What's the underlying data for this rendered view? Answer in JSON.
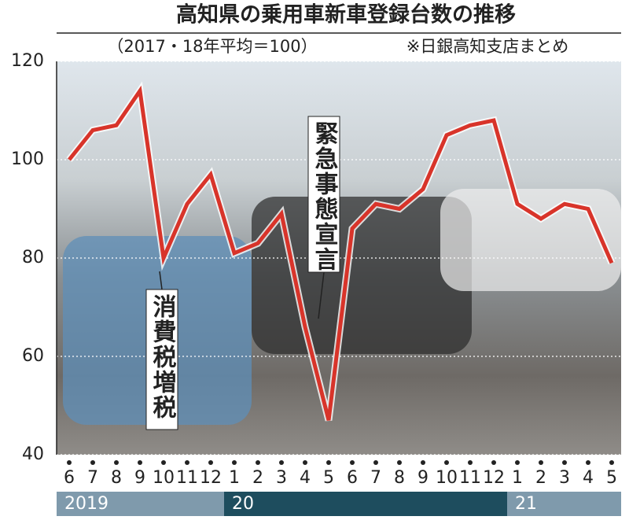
{
  "chart_data": {
    "type": "line",
    "title": "高知県の乗用車新車登録台数の推移",
    "subtitle": "（2017・18年平均＝100）",
    "source": "※日銀高知支店まとめ",
    "categories": [
      "6",
      "7",
      "8",
      "9",
      "10",
      "11",
      "12",
      "1",
      "2",
      "3",
      "4",
      "5",
      "6",
      "7",
      "8",
      "9",
      "10",
      "11",
      "12",
      "1",
      "2",
      "3",
      "4",
      "5"
    ],
    "values": [
      100,
      106,
      107,
      114,
      80,
      91,
      97,
      81,
      83,
      89,
      66,
      47,
      86,
      91,
      90,
      94,
      105,
      107,
      108,
      91,
      88,
      91,
      90,
      79
    ],
    "color": "#d8342a",
    "ylim": [
      40,
      120
    ],
    "yticks": [
      40,
      60,
      80,
      100,
      120
    ],
    "grid": true,
    "annotations": [
      "消費税増税",
      "緊急事態宣言"
    ],
    "years": [
      "2019",
      "20",
      "21"
    ]
  }
}
